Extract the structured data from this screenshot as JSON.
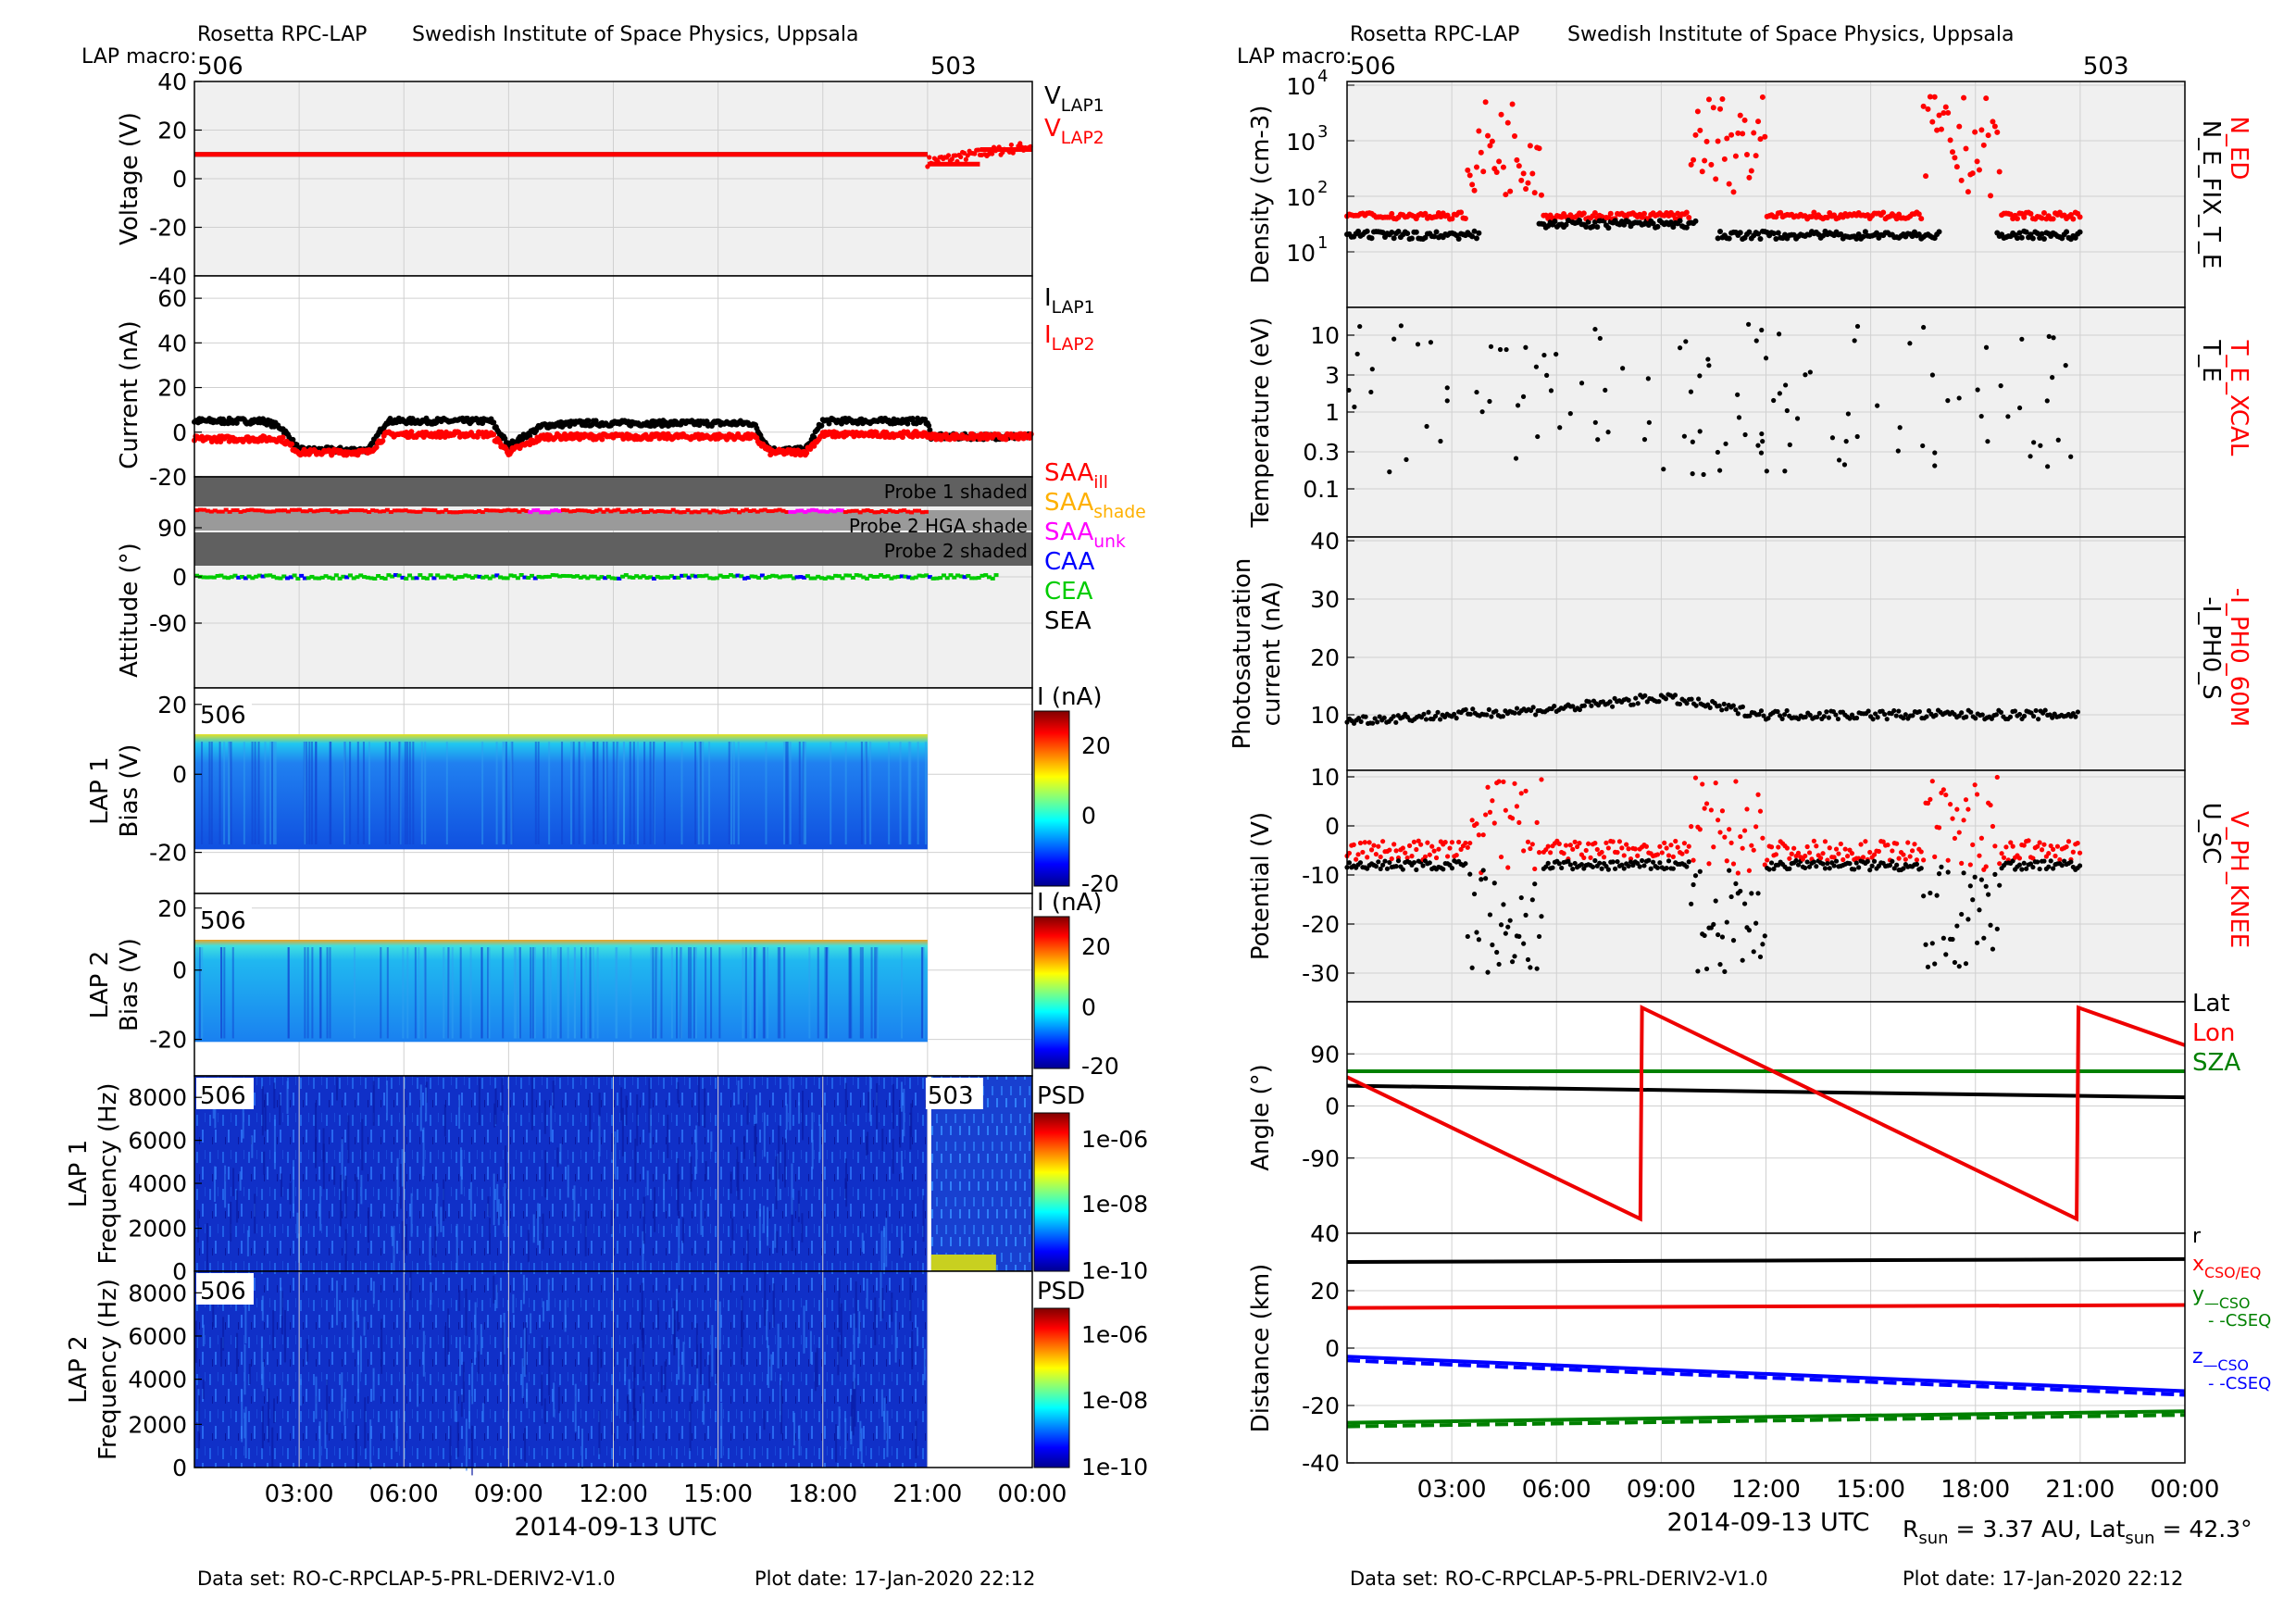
{
  "left": {
    "header": {
      "org": "Rosetta RPC-LAP",
      "inst": "Swedish Institute of Space Physics, Uppsala",
      "macro_label": "LAP macro:",
      "macros": [
        {
          "label": "506",
          "t": 0
        },
        {
          "label": "503",
          "t": 21
        }
      ]
    },
    "footer": {
      "dataset": "Data set: RO-C-RPCLAP-5-PRL-DERIV2-V1.0",
      "plotdate": "Plot date: 17-Jan-2020 22:12"
    },
    "xaxis": {
      "label": "2014-09-13 UTC",
      "ticks": [
        "03:00",
        "06:00",
        "09:00",
        "12:00",
        "15:00",
        "18:00",
        "21:00",
        "00:00"
      ]
    },
    "voltage": {
      "ylabel": "Voltage (V)",
      "yticks": [
        "40",
        "20",
        "0",
        "-20",
        "-40"
      ],
      "legend": [
        {
          "text": "V",
          "sub": "LAP1",
          "color": "#000000"
        },
        {
          "text": "V",
          "sub": "LAP2",
          "color": "#ff0000"
        }
      ]
    },
    "current": {
      "ylabel": "Current (nA)",
      "yticks": [
        "60",
        "40",
        "20",
        "0",
        "-20"
      ],
      "legend": [
        {
          "text": "I",
          "sub": "LAP1",
          "color": "#000000"
        },
        {
          "text": "I",
          "sub": "LAP2",
          "color": "#ff0000"
        }
      ]
    },
    "attitude": {
      "ylabel": "Attitude (°)",
      "yticks": [
        "90",
        "0",
        "-90"
      ],
      "bands": [
        "Probe 1 shaded",
        "Probe 2 HGA shade",
        "Probe 2 shaded"
      ],
      "legend": [
        {
          "text": "SAA",
          "sub": "ill",
          "color": "#ff0000"
        },
        {
          "text": "SAA",
          "sub": "shade",
          "color": "#ffb000"
        },
        {
          "text": "SAA",
          "sub": "unk",
          "color": "#ff00ff"
        },
        {
          "text": "CAA",
          "sub": "",
          "color": "#0000ff"
        },
        {
          "text": "CEA",
          "sub": "",
          "color": "#00cc00"
        },
        {
          "text": "SEA",
          "sub": "",
          "color": "#000000"
        }
      ]
    },
    "lap1_bias": {
      "ylabel1": "LAP 1",
      "ylabel2": "Bias (V)",
      "yticks": [
        "20",
        "0",
        "-20"
      ],
      "macro": "506",
      "cbar_title": "I (nA)",
      "cbar_ticks": [
        "20",
        "0",
        "-20"
      ]
    },
    "lap2_bias": {
      "ylabel1": "LAP 2",
      "ylabel2": "Bias (V)",
      "yticks": [
        "20",
        "0",
        "-20"
      ],
      "macro": "506",
      "cbar_title": "I (nA)",
      "cbar_ticks": [
        "20",
        "0",
        "-20"
      ]
    },
    "lap1_freq": {
      "ylabel1": "LAP 1",
      "ylabel2": "Frequency (Hz)",
      "yticks": [
        "8000",
        "6000",
        "4000",
        "2000",
        "0"
      ],
      "macros": [
        "506",
        "503"
      ],
      "cbar_title": "PSD",
      "cbar_ticks": [
        "1e-06",
        "1e-08",
        "1e-10"
      ]
    },
    "lap2_freq": {
      "ylabel1": "LAP 2",
      "ylabel2": "Frequency (Hz)",
      "yticks": [
        "8000",
        "6000",
        "4000",
        "2000",
        "0"
      ],
      "macro": "506",
      "cbar_title": "PSD",
      "cbar_ticks": [
        "1e-06",
        "1e-08",
        "1e-10"
      ]
    }
  },
  "right": {
    "header": {
      "org": "Rosetta RPC-LAP",
      "inst": "Swedish Institute of Space Physics, Uppsala",
      "macro_label": "LAP macro:",
      "macros": [
        {
          "label": "506",
          "t": 0
        },
        {
          "label": "503",
          "t": 21
        }
      ]
    },
    "footer": {
      "dataset": "Data set: RO-C-RPCLAP-5-PRL-DERIV2-V1.0",
      "plotdate": "Plot date: 17-Jan-2020 22:12",
      "rsun": "R_sun = 3.37 AU, Lat_sun = 42.3°"
    },
    "xaxis": {
      "label": "2014-09-13 UTC",
      "ticks": [
        "03:00",
        "06:00",
        "09:00",
        "12:00",
        "15:00",
        "18:00",
        "21:00",
        "00:00"
      ]
    },
    "density": {
      "ylabel": "Density (cm-3)",
      "yticks": [
        "10^4",
        "10^3",
        "10^2",
        "10^1"
      ],
      "legend_red": "N_ED",
      "legend_black": "N_E_FIX_T_E"
    },
    "temperature": {
      "ylabel": "Temperature (eV)",
      "yticks": [
        "10",
        "3",
        "1",
        "0.3",
        "0.1"
      ],
      "legend_red": "T_E_XCAL",
      "legend_black": "T_E"
    },
    "photo": {
      "ylabel1": "Photosaturation",
      "ylabel2": "current (nA)",
      "yticks": [
        "40",
        "30",
        "20",
        "10"
      ],
      "legend_red": "-I_PH0_60M",
      "legend_black": "-I_PH0_S"
    },
    "potential": {
      "ylabel": "Potential (V)",
      "yticks": [
        "10",
        "0",
        "-10",
        "-20",
        "-30"
      ],
      "legend_red": "V_PH_KNEE",
      "legend_black": "U_SC"
    },
    "angle": {
      "ylabel": "Angle (°)",
      "yticks": [
        "90",
        "0",
        "-90"
      ],
      "bottom_tick": "40",
      "legend": [
        {
          "text": "Lat",
          "color": "#000000"
        },
        {
          "text": "Lon",
          "color": "#ff0000"
        },
        {
          "text": "SZA",
          "color": "#008000"
        }
      ]
    },
    "distance": {
      "ylabel": "Distance (km)",
      "yticks": [
        "20",
        "0",
        "-20",
        "-40"
      ],
      "top_tick": "40",
      "legend": [
        {
          "text": "r",
          "sub": "",
          "color": "#000000"
        },
        {
          "text": "x",
          "sub": "CSO/EQ",
          "color": "#ff0000"
        },
        {
          "text": "y",
          "sub": "—CSO",
          "color": "#008000"
        },
        {
          "text": "",
          "sub": "- -CSEQ",
          "color": "#008000"
        },
        {
          "text": "z",
          "sub": "—CSO",
          "color": "#0000ff"
        },
        {
          "text": "",
          "sub": "- -CSEQ",
          "color": "#0000ff"
        }
      ]
    }
  },
  "chart_data": [
    {
      "type": "scatter",
      "title": "Voltage",
      "xlabel": "2014-09-13 UTC",
      "ylabel": "Voltage (V)",
      "ylim": [
        -40,
        40
      ],
      "series": [
        {
          "name": "V_LAP1",
          "segments": [
            {
              "t0": 0,
              "t1": 21,
              "v": 10
            }
          ]
        },
        {
          "name": "V_LAP2",
          "segments": [
            {
              "t0": 0,
              "t1": 21,
              "v": 10
            },
            {
              "t0": 21,
              "t1": 22.5,
              "v": 6
            },
            {
              "t0": 22.5,
              "t1": 24,
              "v": 12
            }
          ]
        }
      ]
    },
    {
      "type": "scatter",
      "title": "Current",
      "xlabel": "2014-09-13 UTC",
      "ylabel": "Current (nA)",
      "ylim": [
        -20,
        70
      ],
      "series": [
        {
          "name": "I_LAP1",
          "points": [
            [
              0,
              5
            ],
            [
              2,
              5
            ],
            [
              2.5,
              2
            ],
            [
              3,
              -8
            ],
            [
              5,
              -8
            ],
            [
              5.5,
              5
            ],
            [
              8.5,
              5
            ],
            [
              9,
              -6
            ],
            [
              10,
              3
            ],
            [
              11,
              4
            ],
            [
              16,
              4
            ],
            [
              16.5,
              -8
            ],
            [
              17.5,
              -8
            ],
            [
              18,
              5
            ],
            [
              21,
              5
            ],
            [
              21.1,
              -2
            ],
            [
              24,
              -2
            ]
          ]
        },
        {
          "name": "I_LAP2",
          "points": [
            [
              0,
              -3
            ],
            [
              2.5,
              -3
            ],
            [
              3,
              -9
            ],
            [
              5,
              -9
            ],
            [
              5.5,
              -1
            ],
            [
              8.5,
              -1
            ],
            [
              9,
              -9
            ],
            [
              10,
              -2
            ],
            [
              16,
              -2
            ],
            [
              16.5,
              -9
            ],
            [
              17.5,
              -9
            ],
            [
              18,
              -1
            ],
            [
              21,
              -1
            ],
            [
              21.1,
              -2
            ],
            [
              24,
              -2
            ]
          ]
        }
      ]
    },
    {
      "type": "scatter",
      "title": "Attitude",
      "xlabel": "2014-09-13 UTC",
      "ylabel": "Attitude (°)",
      "ylim": [
        -180,
        180
      ],
      "series": [
        {
          "name": "SAA_ill",
          "v": 100
        },
        {
          "name": "CEA",
          "v": 0
        }
      ]
    },
    {
      "type": "line",
      "title": "Angle",
      "xlabel": "2014-09-13 UTC",
      "ylabel": "Angle (°)",
      "ylim": [
        -220,
        180
      ],
      "series": [
        {
          "name": "Lat",
          "points": [
            [
              0,
              35
            ],
            [
              24,
              15
            ]
          ]
        },
        {
          "name": "SZA",
          "points": [
            [
              0,
              60
            ],
            [
              24,
              60
            ]
          ]
        },
        {
          "name": "Lon",
          "points": [
            [
              0,
              50
            ],
            [
              8.4,
              -195
            ],
            [
              8.45,
              170
            ],
            [
              20.9,
              -195
            ],
            [
              20.95,
              170
            ],
            [
              24,
              105
            ]
          ]
        }
      ]
    },
    {
      "type": "line",
      "title": "Distance",
      "xlabel": "2014-09-13 UTC",
      "ylabel": "Distance (km)",
      "ylim": [
        -40,
        40
      ],
      "series": [
        {
          "name": "r",
          "points": [
            [
              0,
              30
            ],
            [
              24,
              31
            ]
          ]
        },
        {
          "name": "x",
          "points": [
            [
              0,
              14
            ],
            [
              24,
              15
            ]
          ]
        },
        {
          "name": "z",
          "points": [
            [
              0,
              -3
            ],
            [
              24,
              -15
            ]
          ]
        },
        {
          "name": "y",
          "points": [
            [
              0,
              -26
            ],
            [
              24,
              -22
            ]
          ]
        }
      ]
    },
    {
      "type": "scatter",
      "title": "Photosaturation current",
      "xlabel": "2014-09-13 UTC",
      "ylabel": "Photosaturation current (nA)",
      "ylim": [
        5,
        40
      ],
      "series": [
        {
          "name": "-I_PH0_S",
          "points": [
            [
              0,
              9
            ],
            [
              3,
              10
            ],
            [
              6,
              11
            ],
            [
              9,
              13
            ],
            [
              12,
              10
            ],
            [
              15,
              10
            ],
            [
              18,
              10
            ],
            [
              21,
              10
            ]
          ]
        }
      ]
    }
  ]
}
